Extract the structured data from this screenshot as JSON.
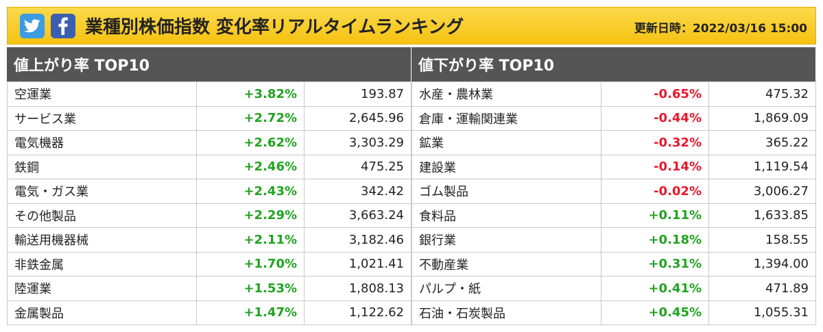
{
  "header": {
    "title": "業種別株価指数 変化率リアルタイムランキング",
    "updated": "更新日時：2022/03/16 15:00",
    "icons": [
      "twitter-icon",
      "facebook-icon"
    ],
    "colors": {
      "banner": "#f5c211",
      "twitter": "#3c9be3",
      "facebook": "#3b5fb0",
      "up": "#1fa31f",
      "down": "#e8172b"
    }
  },
  "gainers": {
    "title": "値上がり率 TOP10",
    "rows": [
      {
        "name": "空運業",
        "change": "+3.82%",
        "value": "193.87",
        "dir": "up"
      },
      {
        "name": "サービス業",
        "change": "+2.72%",
        "value": "2,645.96",
        "dir": "up"
      },
      {
        "name": "電気機器",
        "change": "+2.62%",
        "value": "3,303.29",
        "dir": "up"
      },
      {
        "name": "鉄鋼",
        "change": "+2.46%",
        "value": "475.25",
        "dir": "up"
      },
      {
        "name": "電気・ガス業",
        "change": "+2.43%",
        "value": "342.42",
        "dir": "up"
      },
      {
        "name": "その他製品",
        "change": "+2.29%",
        "value": "3,663.24",
        "dir": "up"
      },
      {
        "name": "輸送用機器械",
        "change": "+2.11%",
        "value": "3,182.46",
        "dir": "up"
      },
      {
        "name": "非鉄金属",
        "change": "+1.70%",
        "value": "1,021.41",
        "dir": "up"
      },
      {
        "name": "陸運業",
        "change": "+1.53%",
        "value": "1,808.13",
        "dir": "up"
      },
      {
        "name": "金属製品",
        "change": "+1.47%",
        "value": "1,122.62",
        "dir": "up"
      }
    ]
  },
  "losers": {
    "title": "値下がり率 TOP10",
    "rows": [
      {
        "name": "水産・農林業",
        "change": "-0.65%",
        "value": "475.32",
        "dir": "down"
      },
      {
        "name": "倉庫・運輸関連業",
        "change": "-0.44%",
        "value": "1,869.09",
        "dir": "down"
      },
      {
        "name": "鉱業",
        "change": "-0.32%",
        "value": "365.22",
        "dir": "down"
      },
      {
        "name": "建設業",
        "change": "-0.14%",
        "value": "1,119.54",
        "dir": "down"
      },
      {
        "name": "ゴム製品",
        "change": "-0.02%",
        "value": "3,006.27",
        "dir": "down"
      },
      {
        "name": "食料品",
        "change": "+0.11%",
        "value": "1,633.85",
        "dir": "up"
      },
      {
        "name": "銀行業",
        "change": "+0.18%",
        "value": "158.55",
        "dir": "up"
      },
      {
        "name": "不動産業",
        "change": "+0.31%",
        "value": "1,394.00",
        "dir": "up"
      },
      {
        "name": "パルプ・紙",
        "change": "+0.41%",
        "value": "471.89",
        "dir": "up"
      },
      {
        "name": "石油・石炭製品",
        "change": "+0.45%",
        "value": "1,055.31",
        "dir": "up"
      }
    ]
  }
}
